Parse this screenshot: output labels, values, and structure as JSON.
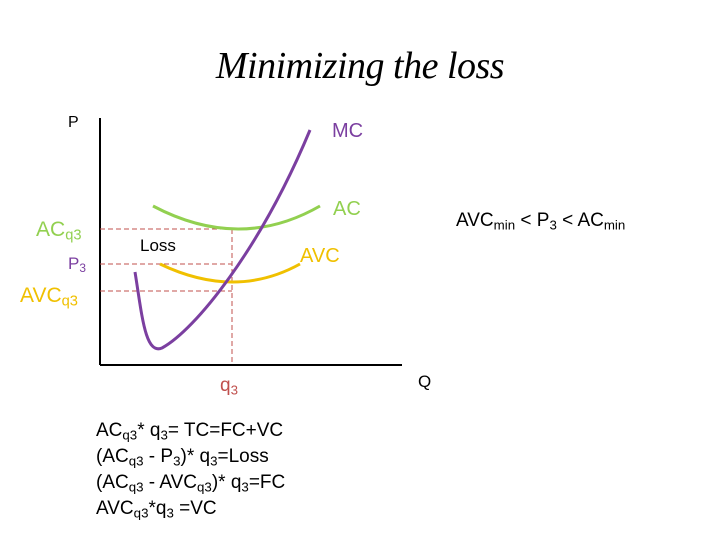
{
  "title": "Minimizing the loss",
  "colors": {
    "mc": "#7b3fa0",
    "ac": "#92d050",
    "avc": "#f0c000",
    "guide": "#c0504d",
    "axis": "#000000"
  },
  "axes": {
    "y_label": "P",
    "x_label": "Q"
  },
  "curve_labels": {
    "mc": "MC",
    "ac": "AC",
    "avc": "AVC"
  },
  "price_labels": {
    "ac_main": "AC",
    "ac_sub": "q3",
    "p_main": "P",
    "p_sub": "3",
    "avc_main": "AVC",
    "avc_sub": "q3"
  },
  "quantity_label": {
    "main": "q",
    "sub": "3"
  },
  "area_label": "Loss",
  "condition": {
    "part1": "AVC",
    "part1_sub": "min",
    "part2": " < P",
    "part2_sub": "3",
    "part3": " < AC",
    "part3_sub": "min"
  },
  "formulas": [
    {
      "a": "AC",
      "a_sub": "q3",
      "b": "* q",
      "b_sub": "3",
      "c": "= TC=FC+VC"
    },
    {
      "a": "(AC",
      "a_sub": "q3",
      "b": " - P",
      "b_sub": "3",
      "c": ")* q",
      "c_sub": "3",
      "d": "=Loss"
    },
    {
      "a": "(AC",
      "a_sub": "q3",
      "b": " - AVC",
      "b_sub": "q3",
      "c": ")* q",
      "c_sub": "3",
      "d": "=FC"
    },
    {
      "a": "AVC",
      "a_sub": "q3",
      "b": "*q",
      "b_sub": "3",
      "c": " =VC"
    }
  ]
}
